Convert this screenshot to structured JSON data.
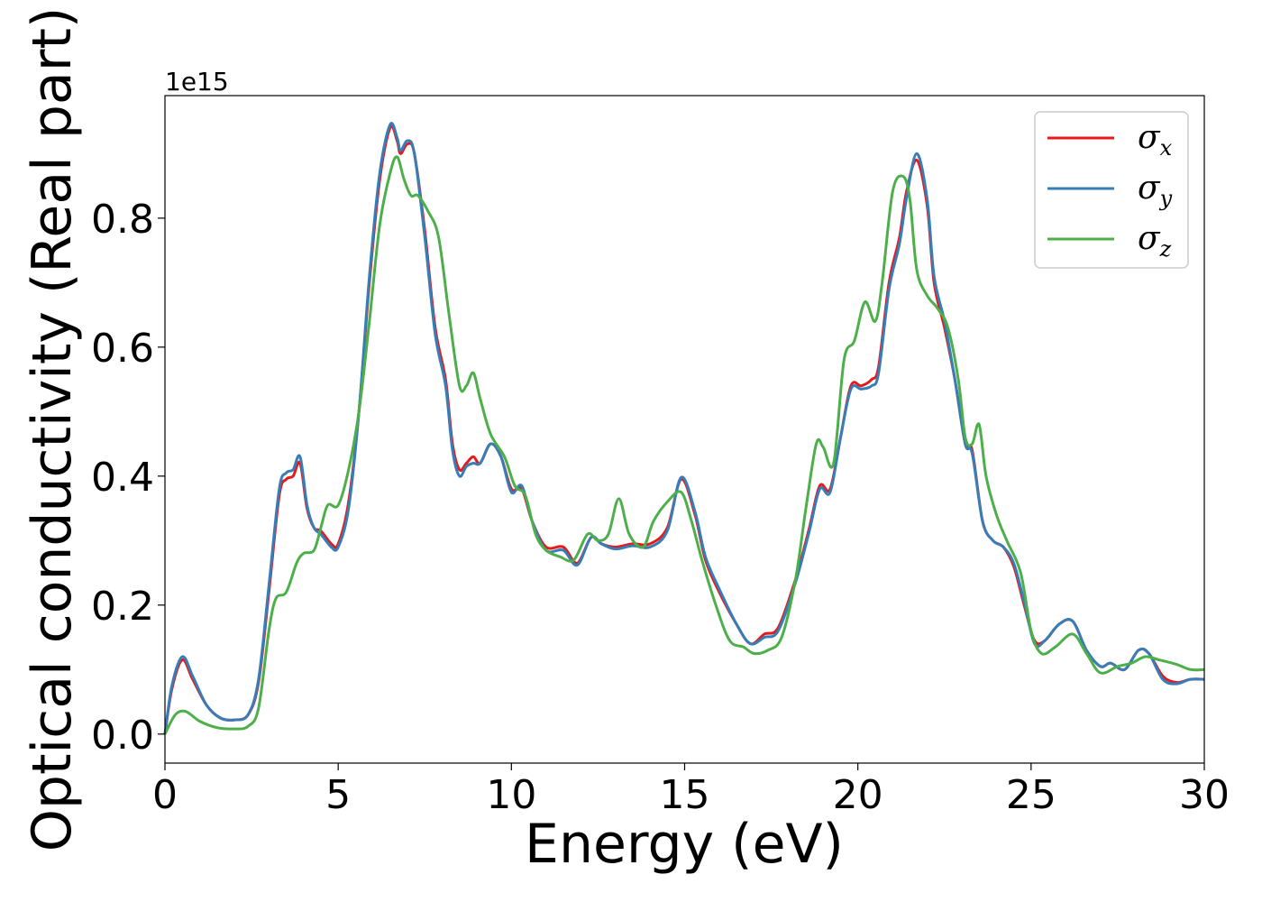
{
  "chart_data": {
    "type": "line",
    "xlabel": "Energy (eV)",
    "ylabel": "Optical conductivity (Real part)",
    "y_offset_label": "1e15",
    "xlim": [
      0,
      30
    ],
    "ylim": [
      -0.045,
      0.99
    ],
    "x_ticks": [
      0,
      5,
      10,
      15,
      20,
      25,
      30
    ],
    "x_tick_labels": [
      "0",
      "5",
      "10",
      "15",
      "20",
      "25",
      "30"
    ],
    "y_ticks": [
      0.0,
      0.2,
      0.4,
      0.6,
      0.8
    ],
    "y_tick_labels": [
      "0.0",
      "0.2",
      "0.4",
      "0.6",
      "0.8"
    ],
    "grid": false,
    "legend_position": "top-right",
    "series": [
      {
        "name": "σx",
        "symbol": "σ",
        "subscript": "x",
        "color": "#e41a1c",
        "points": [
          [
            0,
            0.0
          ],
          [
            0.2,
            0.07
          ],
          [
            0.5,
            0.115
          ],
          [
            0.8,
            0.085
          ],
          [
            1.2,
            0.045
          ],
          [
            1.6,
            0.025
          ],
          [
            2.0,
            0.022
          ],
          [
            2.4,
            0.03
          ],
          [
            2.7,
            0.08
          ],
          [
            3.0,
            0.22
          ],
          [
            3.3,
            0.37
          ],
          [
            3.5,
            0.395
          ],
          [
            3.7,
            0.4
          ],
          [
            3.9,
            0.42
          ],
          [
            4.1,
            0.35
          ],
          [
            4.3,
            0.32
          ],
          [
            4.5,
            0.315
          ],
          [
            4.8,
            0.295
          ],
          [
            5.0,
            0.295
          ],
          [
            5.3,
            0.36
          ],
          [
            5.6,
            0.5
          ],
          [
            5.9,
            0.7
          ],
          [
            6.2,
            0.86
          ],
          [
            6.5,
            0.94
          ],
          [
            6.7,
            0.92
          ],
          [
            6.8,
            0.9
          ],
          [
            7.0,
            0.915
          ],
          [
            7.2,
            0.9
          ],
          [
            7.5,
            0.78
          ],
          [
            7.8,
            0.63
          ],
          [
            8.1,
            0.55
          ],
          [
            8.3,
            0.45
          ],
          [
            8.5,
            0.41
          ],
          [
            8.7,
            0.42
          ],
          [
            8.9,
            0.43
          ],
          [
            9.1,
            0.42
          ],
          [
            9.4,
            0.45
          ],
          [
            9.7,
            0.43
          ],
          [
            10.0,
            0.38
          ],
          [
            10.3,
            0.38
          ],
          [
            10.6,
            0.33
          ],
          [
            11.0,
            0.29
          ],
          [
            11.5,
            0.29
          ],
          [
            11.9,
            0.265
          ],
          [
            12.3,
            0.305
          ],
          [
            12.6,
            0.295
          ],
          [
            13.0,
            0.29
          ],
          [
            13.5,
            0.295
          ],
          [
            14.0,
            0.295
          ],
          [
            14.5,
            0.32
          ],
          [
            14.9,
            0.395
          ],
          [
            15.3,
            0.34
          ],
          [
            15.6,
            0.27
          ],
          [
            16.0,
            0.22
          ],
          [
            16.5,
            0.17
          ],
          [
            16.9,
            0.14
          ],
          [
            17.3,
            0.155
          ],
          [
            17.7,
            0.165
          ],
          [
            18.2,
            0.24
          ],
          [
            18.6,
            0.32
          ],
          [
            18.9,
            0.385
          ],
          [
            19.2,
            0.38
          ],
          [
            19.5,
            0.46
          ],
          [
            19.8,
            0.54
          ],
          [
            20.1,
            0.54
          ],
          [
            20.4,
            0.55
          ],
          [
            20.6,
            0.57
          ],
          [
            20.9,
            0.7
          ],
          [
            21.2,
            0.77
          ],
          [
            21.4,
            0.84
          ],
          [
            21.7,
            0.89
          ],
          [
            22.0,
            0.82
          ],
          [
            22.2,
            0.7
          ],
          [
            22.5,
            0.63
          ],
          [
            22.8,
            0.55
          ],
          [
            23.1,
            0.45
          ],
          [
            23.3,
            0.44
          ],
          [
            23.6,
            0.33
          ],
          [
            23.9,
            0.3
          ],
          [
            24.2,
            0.29
          ],
          [
            24.5,
            0.26
          ],
          [
            24.8,
            0.2
          ],
          [
            25.1,
            0.145
          ],
          [
            25.4,
            0.145
          ],
          [
            25.8,
            0.17
          ],
          [
            26.2,
            0.175
          ],
          [
            26.6,
            0.13
          ],
          [
            27.0,
            0.105
          ],
          [
            27.3,
            0.11
          ],
          [
            27.7,
            0.1
          ],
          [
            28.1,
            0.13
          ],
          [
            28.4,
            0.125
          ],
          [
            28.8,
            0.09
          ],
          [
            29.2,
            0.08
          ],
          [
            29.6,
            0.085
          ],
          [
            30,
            0.085
          ]
        ]
      },
      {
        "name": "σy",
        "symbol": "σ",
        "subscript": "y",
        "color": "#377eb8",
        "points": [
          [
            0,
            0.0
          ],
          [
            0.2,
            0.075
          ],
          [
            0.5,
            0.12
          ],
          [
            0.8,
            0.09
          ],
          [
            1.2,
            0.045
          ],
          [
            1.6,
            0.025
          ],
          [
            2.0,
            0.022
          ],
          [
            2.4,
            0.03
          ],
          [
            2.7,
            0.085
          ],
          [
            3.0,
            0.23
          ],
          [
            3.3,
            0.38
          ],
          [
            3.5,
            0.405
          ],
          [
            3.7,
            0.41
          ],
          [
            3.9,
            0.43
          ],
          [
            4.1,
            0.355
          ],
          [
            4.3,
            0.32
          ],
          [
            4.5,
            0.31
          ],
          [
            4.8,
            0.29
          ],
          [
            5.0,
            0.29
          ],
          [
            5.3,
            0.35
          ],
          [
            5.6,
            0.5
          ],
          [
            5.9,
            0.71
          ],
          [
            6.2,
            0.87
          ],
          [
            6.5,
            0.945
          ],
          [
            6.7,
            0.925
          ],
          [
            6.8,
            0.905
          ],
          [
            7.0,
            0.92
          ],
          [
            7.2,
            0.9
          ],
          [
            7.5,
            0.77
          ],
          [
            7.8,
            0.62
          ],
          [
            8.1,
            0.54
          ],
          [
            8.3,
            0.44
          ],
          [
            8.5,
            0.4
          ],
          [
            8.7,
            0.415
          ],
          [
            8.9,
            0.42
          ],
          [
            9.1,
            0.42
          ],
          [
            9.4,
            0.45
          ],
          [
            9.7,
            0.43
          ],
          [
            10.0,
            0.375
          ],
          [
            10.3,
            0.385
          ],
          [
            10.6,
            0.33
          ],
          [
            11.0,
            0.285
          ],
          [
            11.5,
            0.285
          ],
          [
            11.9,
            0.262
          ],
          [
            12.3,
            0.305
          ],
          [
            12.6,
            0.295
          ],
          [
            13.0,
            0.287
          ],
          [
            13.5,
            0.292
          ],
          [
            14.0,
            0.29
          ],
          [
            14.5,
            0.315
          ],
          [
            14.9,
            0.398
          ],
          [
            15.3,
            0.345
          ],
          [
            15.6,
            0.275
          ],
          [
            16.0,
            0.225
          ],
          [
            16.5,
            0.17
          ],
          [
            16.9,
            0.14
          ],
          [
            17.3,
            0.15
          ],
          [
            17.7,
            0.16
          ],
          [
            18.2,
            0.235
          ],
          [
            18.6,
            0.315
          ],
          [
            18.9,
            0.38
          ],
          [
            19.2,
            0.375
          ],
          [
            19.5,
            0.46
          ],
          [
            19.8,
            0.535
          ],
          [
            20.1,
            0.535
          ],
          [
            20.4,
            0.54
          ],
          [
            20.6,
            0.56
          ],
          [
            20.9,
            0.69
          ],
          [
            21.2,
            0.76
          ],
          [
            21.4,
            0.83
          ],
          [
            21.7,
            0.9
          ],
          [
            22.0,
            0.83
          ],
          [
            22.2,
            0.71
          ],
          [
            22.5,
            0.64
          ],
          [
            22.8,
            0.55
          ],
          [
            23.1,
            0.45
          ],
          [
            23.3,
            0.435
          ],
          [
            23.6,
            0.33
          ],
          [
            23.9,
            0.3
          ],
          [
            24.2,
            0.29
          ],
          [
            24.5,
            0.265
          ],
          [
            24.8,
            0.205
          ],
          [
            25.1,
            0.14
          ],
          [
            25.4,
            0.145
          ],
          [
            25.8,
            0.17
          ],
          [
            26.2,
            0.175
          ],
          [
            26.6,
            0.13
          ],
          [
            27.0,
            0.105
          ],
          [
            27.3,
            0.11
          ],
          [
            27.7,
            0.1
          ],
          [
            28.1,
            0.13
          ],
          [
            28.4,
            0.125
          ],
          [
            28.8,
            0.085
          ],
          [
            29.2,
            0.078
          ],
          [
            29.6,
            0.085
          ],
          [
            30,
            0.085
          ]
        ]
      },
      {
        "name": "σz",
        "symbol": "σ",
        "subscript": "z",
        "color": "#4daf4a",
        "points": [
          [
            0,
            0.0
          ],
          [
            0.3,
            0.03
          ],
          [
            0.6,
            0.035
          ],
          [
            1.0,
            0.02
          ],
          [
            1.5,
            0.01
          ],
          [
            2.0,
            0.008
          ],
          [
            2.4,
            0.012
          ],
          [
            2.7,
            0.04
          ],
          [
            3.0,
            0.16
          ],
          [
            3.2,
            0.21
          ],
          [
            3.5,
            0.22
          ],
          [
            3.8,
            0.265
          ],
          [
            4.0,
            0.28
          ],
          [
            4.3,
            0.285
          ],
          [
            4.5,
            0.32
          ],
          [
            4.7,
            0.355
          ],
          [
            5.0,
            0.355
          ],
          [
            5.3,
            0.41
          ],
          [
            5.6,
            0.5
          ],
          [
            5.9,
            0.64
          ],
          [
            6.2,
            0.79
          ],
          [
            6.5,
            0.87
          ],
          [
            6.7,
            0.895
          ],
          [
            6.9,
            0.86
          ],
          [
            7.1,
            0.835
          ],
          [
            7.3,
            0.835
          ],
          [
            7.6,
            0.81
          ],
          [
            7.9,
            0.77
          ],
          [
            8.2,
            0.65
          ],
          [
            8.5,
            0.54
          ],
          [
            8.7,
            0.54
          ],
          [
            8.9,
            0.56
          ],
          [
            9.1,
            0.52
          ],
          [
            9.4,
            0.465
          ],
          [
            9.8,
            0.43
          ],
          [
            10.1,
            0.385
          ],
          [
            10.4,
            0.37
          ],
          [
            10.7,
            0.31
          ],
          [
            11.0,
            0.285
          ],
          [
            11.4,
            0.275
          ],
          [
            11.8,
            0.27
          ],
          [
            12.2,
            0.31
          ],
          [
            12.5,
            0.3
          ],
          [
            12.8,
            0.31
          ],
          [
            13.1,
            0.365
          ],
          [
            13.4,
            0.31
          ],
          [
            13.8,
            0.29
          ],
          [
            14.1,
            0.33
          ],
          [
            14.5,
            0.36
          ],
          [
            14.9,
            0.375
          ],
          [
            15.2,
            0.33
          ],
          [
            15.5,
            0.27
          ],
          [
            15.9,
            0.2
          ],
          [
            16.3,
            0.145
          ],
          [
            16.7,
            0.135
          ],
          [
            17.0,
            0.125
          ],
          [
            17.4,
            0.13
          ],
          [
            17.8,
            0.15
          ],
          [
            18.2,
            0.24
          ],
          [
            18.5,
            0.35
          ],
          [
            18.8,
            0.45
          ],
          [
            19.0,
            0.445
          ],
          [
            19.3,
            0.42
          ],
          [
            19.6,
            0.58
          ],
          [
            19.9,
            0.61
          ],
          [
            20.2,
            0.67
          ],
          [
            20.5,
            0.64
          ],
          [
            20.7,
            0.7
          ],
          [
            21.0,
            0.84
          ],
          [
            21.3,
            0.865
          ],
          [
            21.5,
            0.83
          ],
          [
            21.7,
            0.72
          ],
          [
            22.0,
            0.68
          ],
          [
            22.3,
            0.66
          ],
          [
            22.6,
            0.63
          ],
          [
            22.9,
            0.55
          ],
          [
            23.1,
            0.46
          ],
          [
            23.3,
            0.45
          ],
          [
            23.5,
            0.48
          ],
          [
            23.7,
            0.4
          ],
          [
            24.0,
            0.34
          ],
          [
            24.3,
            0.3
          ],
          [
            24.7,
            0.25
          ],
          [
            25.0,
            0.16
          ],
          [
            25.3,
            0.125
          ],
          [
            25.7,
            0.135
          ],
          [
            26.2,
            0.155
          ],
          [
            26.6,
            0.125
          ],
          [
            27.0,
            0.095
          ],
          [
            27.5,
            0.105
          ],
          [
            27.9,
            0.11
          ],
          [
            28.3,
            0.12
          ],
          [
            28.7,
            0.115
          ],
          [
            29.2,
            0.108
          ],
          [
            29.6,
            0.1
          ],
          [
            30,
            0.1
          ]
        ]
      }
    ]
  }
}
